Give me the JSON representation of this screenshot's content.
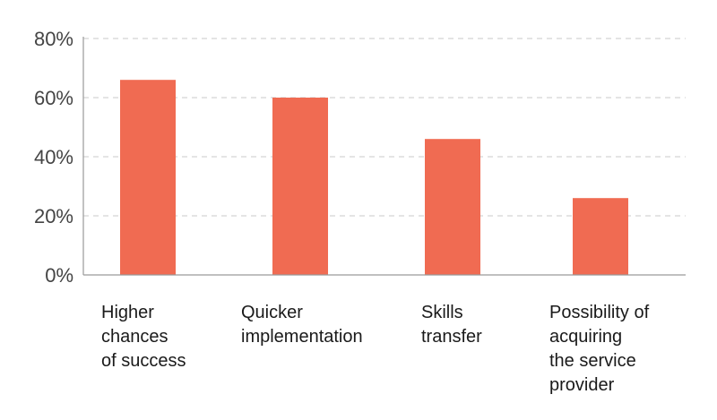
{
  "chart_data": {
    "type": "bar",
    "categories": [
      "Higher chances of success",
      "Quicker implementation",
      "Skills transfer",
      "Possibility of acquiring the service provider"
    ],
    "category_lines": [
      [
        "Higher",
        "chances",
        "of success"
      ],
      [
        "Quicker",
        "implementation"
      ],
      [
        "Skills",
        "transfer"
      ],
      [
        "Possibility of",
        "acquiring",
        "the service",
        "provider"
      ]
    ],
    "values": [
      66,
      60,
      46,
      26
    ],
    "title": "",
    "xlabel": "",
    "ylabel": "",
    "ylim": [
      0,
      80
    ],
    "yticks": [
      0,
      20,
      40,
      60,
      80
    ],
    "ytick_labels": [
      "0%",
      "20%",
      "40%",
      "60%",
      "80%"
    ],
    "grid": true,
    "legend": "none",
    "bar_color": "#f06b52"
  }
}
